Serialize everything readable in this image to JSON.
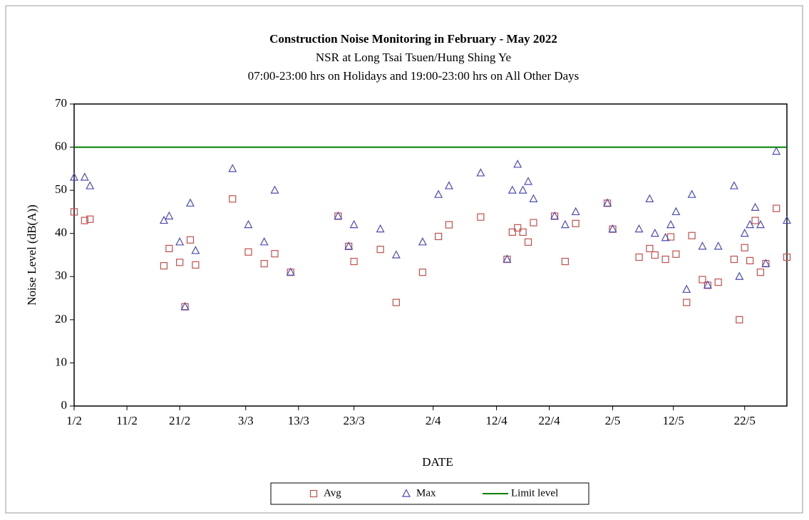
{
  "chart_data": {
    "type": "scatter",
    "title": "Construction  Noise Monitoring  in February  - May 2022",
    "subtitle": [
      "NSR at Long  Tsai Tsuen/Hung  Shing  Ye",
      "07:00-23:00 hrs on Holidays and 19:00-23:00 hrs on All Other Days"
    ],
    "xlabel": "DATE",
    "ylabel": "Noise Level (dB(A))",
    "x": [
      0,
      2,
      3,
      17,
      18,
      20,
      21,
      22,
      23,
      30,
      33,
      36,
      38,
      41,
      50,
      52,
      53,
      58,
      61,
      66,
      69,
      71,
      77,
      82,
      83,
      84,
      85,
      86,
      87,
      91,
      93,
      95,
      101,
      102,
      107,
      109,
      110,
      112,
      113,
      114,
      116,
      117,
      119,
      120,
      122,
      125,
      126,
      127,
      128,
      129,
      130,
      131,
      133,
      135
    ],
    "series": [
      {
        "name": "Avg",
        "color": "#c0504d",
        "marker": "square",
        "values": [
          45,
          43,
          43.3,
          32.5,
          36.5,
          33.3,
          23,
          38.5,
          32.7,
          48,
          35.7,
          33,
          35.3,
          31,
          44,
          37,
          33.5,
          36.3,
          24,
          31,
          39.3,
          42,
          43.8,
          34,
          40.3,
          41.3,
          40.3,
          38,
          42.5,
          44,
          33.5,
          42.3,
          47,
          41,
          34.5,
          36.5,
          35,
          34,
          39.2,
          35.2,
          24,
          39.5,
          29.3,
          28,
          28.7,
          34,
          20,
          36.7,
          33.7,
          43,
          31,
          33,
          45.8,
          34.5
        ]
      },
      {
        "name": "Max",
        "color": "#4b4bb4",
        "marker": "triangle",
        "values": [
          53,
          53,
          51,
          43,
          44,
          38,
          23,
          47,
          36,
          55,
          42,
          38,
          50,
          31,
          44,
          37,
          42,
          41,
          35,
          38,
          49,
          51,
          54,
          34,
          50,
          56,
          50,
          52,
          48,
          44,
          42,
          45,
          47,
          41,
          41,
          48,
          40,
          39,
          42,
          45,
          27,
          49,
          37,
          28,
          37,
          51,
          30,
          40,
          42,
          46,
          42,
          33,
          59,
          43
        ]
      },
      {
        "name": "Limit level",
        "color": "#008000",
        "marker": "hline",
        "value": 60
      }
    ],
    "xlim": [
      0,
      135
    ],
    "xticks": [
      {
        "value": 0,
        "label": "1/2"
      },
      {
        "value": 10,
        "label": "11/2"
      },
      {
        "value": 20,
        "label": "21/2"
      },
      {
        "value": 32.5,
        "label": "3/3"
      },
      {
        "value": 42.5,
        "label": "13/3"
      },
      {
        "value": 53,
        "label": "23/3"
      },
      {
        "value": 68,
        "label": "2/4"
      },
      {
        "value": 80,
        "label": "12/4"
      },
      {
        "value": 90,
        "label": "22/4"
      },
      {
        "value": 102,
        "label": "2/5"
      },
      {
        "value": 113.5,
        "label": "12/5"
      },
      {
        "value": 127,
        "label": "22/5"
      }
    ],
    "ylim": [
      0,
      70
    ],
    "yticks": [
      0,
      10,
      20,
      30,
      40,
      50,
      60,
      70
    ],
    "legend": "bottom"
  }
}
